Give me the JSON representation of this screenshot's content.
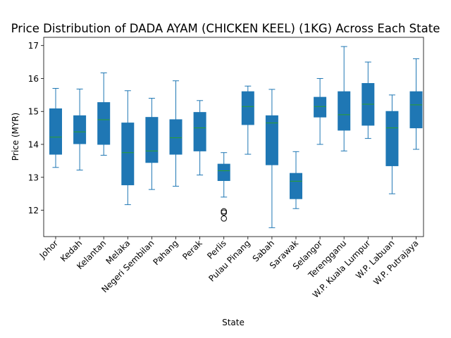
{
  "chart_data": {
    "type": "box",
    "title": "Price Distribution of DADA AYAM (CHICKEN KEEL) (1KG) Across Each State",
    "xlabel": "State",
    "ylabel": "Price (MYR)",
    "ylim": [
      11.2,
      17.25
    ],
    "yticks": [
      12,
      13,
      14,
      15,
      16,
      17
    ],
    "grid": false,
    "colors": {
      "box": "#1f77b4",
      "median": "#2ca02c",
      "whisker": "#1f77b4",
      "flier": "#000000"
    },
    "categories": [
      "Johor",
      "Kedah",
      "Kelantan",
      "Melaka",
      "Negeri Sembilan",
      "Pahang",
      "Perak",
      "Perlis",
      "Pulau Pinang",
      "Sabah",
      "Sarawak",
      "Selangor",
      "Terengganu",
      "W.P. Kuala Lumpur",
      "W.P. Labuan",
      "W.P. Putrajaya"
    ],
    "boxes": [
      {
        "state": "Johor",
        "whislo": 13.3,
        "q1": 13.7,
        "med": 14.22,
        "q3": 15.08,
        "whishi": 15.7,
        "fliers": []
      },
      {
        "state": "Kedah",
        "whislo": 13.22,
        "q1": 14.02,
        "med": 14.38,
        "q3": 14.87,
        "whishi": 15.68,
        "fliers": []
      },
      {
        "state": "Kelantan",
        "whislo": 13.67,
        "q1": 14.0,
        "med": 14.75,
        "q3": 15.27,
        "whishi": 16.17,
        "fliers": []
      },
      {
        "state": "Melaka",
        "whislo": 12.17,
        "q1": 12.77,
        "med": 13.75,
        "q3": 14.65,
        "whishi": 15.63,
        "fliers": []
      },
      {
        "state": "Negeri Sembilan",
        "whislo": 12.63,
        "q1": 13.45,
        "med": 13.8,
        "q3": 14.82,
        "whishi": 15.4,
        "fliers": []
      },
      {
        "state": "Pahang",
        "whislo": 12.73,
        "q1": 13.7,
        "med": 14.2,
        "q3": 14.75,
        "whishi": 15.93,
        "fliers": []
      },
      {
        "state": "Perak",
        "whislo": 13.07,
        "q1": 13.8,
        "med": 14.5,
        "q3": 14.97,
        "whishi": 15.33,
        "fliers": []
      },
      {
        "state": "Perlis",
        "whislo": 12.4,
        "q1": 12.9,
        "med": 13.2,
        "q3": 13.4,
        "whishi": 13.75,
        "fliers": [
          11.97,
          11.93,
          11.75
        ]
      },
      {
        "state": "Pulau Pinang",
        "whislo": 13.7,
        "q1": 14.6,
        "med": 15.15,
        "q3": 15.6,
        "whishi": 15.77,
        "fliers": []
      },
      {
        "state": "Sabah",
        "whislo": 11.47,
        "q1": 13.38,
        "med": 14.65,
        "q3": 14.87,
        "whishi": 15.67,
        "fliers": []
      },
      {
        "state": "Sarawak",
        "whislo": 12.05,
        "q1": 12.35,
        "med": 12.88,
        "q3": 13.12,
        "whishi": 13.78,
        "fliers": []
      },
      {
        "state": "Selangor",
        "whislo": 14.0,
        "q1": 14.83,
        "med": 15.15,
        "q3": 15.43,
        "whishi": 16.0,
        "fliers": []
      },
      {
        "state": "Terengganu",
        "whislo": 13.8,
        "q1": 14.43,
        "med": 14.9,
        "q3": 15.6,
        "whishi": 16.97,
        "fliers": []
      },
      {
        "state": "W.P. Kuala Lumpur",
        "whislo": 14.18,
        "q1": 14.58,
        "med": 15.22,
        "q3": 15.85,
        "whishi": 16.5,
        "fliers": []
      },
      {
        "state": "W.P. Labuan",
        "whislo": 12.5,
        "q1": 13.35,
        "med": 14.5,
        "q3": 15.0,
        "whishi": 15.5,
        "fliers": []
      },
      {
        "state": "W.P. Putrajaya",
        "whislo": 13.85,
        "q1": 14.5,
        "med": 15.2,
        "q3": 15.6,
        "whishi": 16.6,
        "fliers": []
      }
    ]
  }
}
